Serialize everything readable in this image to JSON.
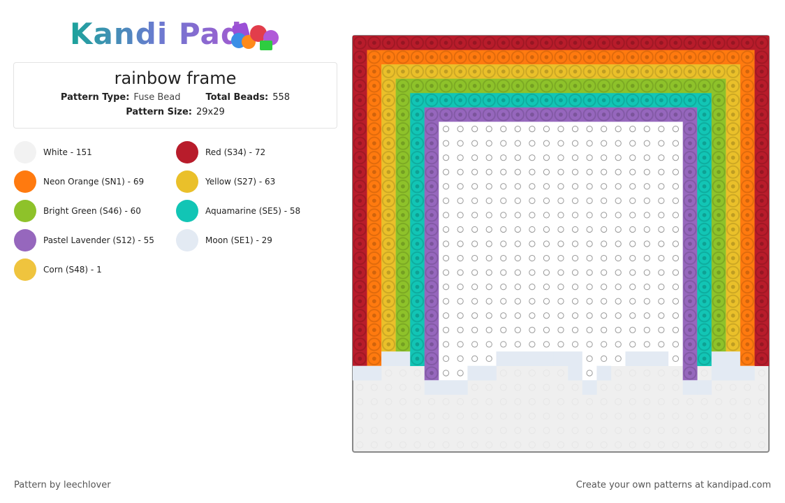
{
  "logo": "Kandi Pad",
  "title": "rainbow  frame",
  "info": {
    "type_label": "Pattern Type:",
    "type_value": "Fuse Bead",
    "total_label": "Total Beads:",
    "total_value": "558",
    "size_label": "Pattern Size:",
    "size_value": "29x29"
  },
  "colors": [
    {
      "label": "White - 151",
      "color": "#f2f2f2"
    },
    {
      "label": "Red (S34) - 72",
      "color": "#b81c2b"
    },
    {
      "label": "Neon Orange (SN1) - 69",
      "color": "#ff7a0f"
    },
    {
      "label": "Yellow (S27) - 63",
      "color": "#eac02a"
    },
    {
      "label": "Bright Green (S46) - 60",
      "color": "#8ec22a"
    },
    {
      "label": "Aquamarine (SE5) - 58",
      "color": "#12c5b5"
    },
    {
      "label": "Pastel Lavender (S12) - 55",
      "color": "#9667bd"
    },
    {
      "label": "Moon (SE1) - 29",
      "color": "#e3eaf3"
    },
    {
      "label": "Corn (S48) - 1",
      "color": "#efc43e"
    }
  ],
  "footer": {
    "left": "Pattern by leechlover",
    "right": "Create your own patterns at kandipad.com"
  }
}
